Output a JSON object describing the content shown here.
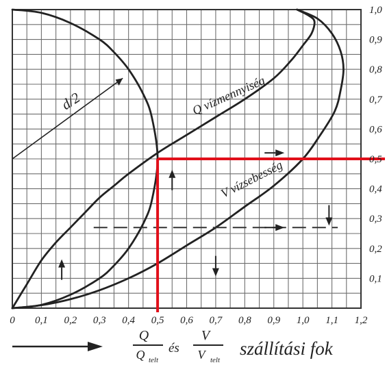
{
  "chart_data": {
    "type": "line",
    "xlim": [
      0,
      1.2
    ],
    "ylim": [
      0,
      1.0
    ],
    "x_ticks": [
      "0",
      "0,1",
      "0,2",
      "0,3",
      "0,4",
      "0,5",
      "0,6",
      "0,7",
      "0,8",
      "0,9",
      "1,0",
      "1,1",
      "1,2"
    ],
    "y_ticks": [
      "0,1",
      "0,2",
      "0,3",
      "0,4",
      "0,5",
      "0,6",
      "0,7",
      "0,8",
      "0,9",
      "1,0"
    ],
    "grid": true,
    "xlabel": {
      "q_num": "Q",
      "q_den": "Q",
      "q_den_sub": "telt",
      "es": "és",
      "v_num": "V",
      "v_den": "V",
      "v_den_sub": "telt",
      "suffix": "szállítási fok"
    },
    "series": [
      {
        "name": "Q vízmennyiség",
        "points": [
          [
            0,
            0
          ],
          [
            0.05,
            0.08
          ],
          [
            0.1,
            0.16
          ],
          [
            0.15,
            0.22
          ],
          [
            0.2,
            0.27
          ],
          [
            0.25,
            0.32
          ],
          [
            0.3,
            0.37
          ],
          [
            0.35,
            0.41
          ],
          [
            0.4,
            0.45
          ],
          [
            0.5,
            0.52
          ],
          [
            0.6,
            0.58
          ],
          [
            0.7,
            0.64
          ],
          [
            0.8,
            0.7
          ],
          [
            0.9,
            0.77
          ],
          [
            0.96,
            0.83
          ],
          [
            1.0,
            0.88
          ],
          [
            1.03,
            0.92
          ],
          [
            1.04,
            0.96
          ],
          [
            1.02,
            0.98
          ],
          [
            0.98,
            1.0
          ]
        ]
      },
      {
        "name": "V vízsebesség",
        "points": [
          [
            0,
            0
          ],
          [
            0.1,
            0.01
          ],
          [
            0.2,
            0.03
          ],
          [
            0.3,
            0.06
          ],
          [
            0.4,
            0.1
          ],
          [
            0.5,
            0.15
          ],
          [
            0.6,
            0.21
          ],
          [
            0.7,
            0.27
          ],
          [
            0.8,
            0.34
          ],
          [
            0.9,
            0.41
          ],
          [
            1.0,
            0.5
          ],
          [
            1.06,
            0.58
          ],
          [
            1.11,
            0.66
          ],
          [
            1.13,
            0.73
          ],
          [
            1.14,
            0.8
          ],
          [
            1.13,
            0.86
          ],
          [
            1.1,
            0.92
          ],
          [
            1.05,
            0.97
          ],
          [
            0.98,
            1.0
          ]
        ]
      },
      {
        "name": "d/2",
        "points": [
          [
            0,
            1.0
          ],
          [
            0.1,
            0.989
          ],
          [
            0.2,
            0.955
          ],
          [
            0.3,
            0.9
          ],
          [
            0.35,
            0.857
          ],
          [
            0.4,
            0.8
          ],
          [
            0.45,
            0.718
          ],
          [
            0.48,
            0.64
          ],
          [
            0.5,
            0.5
          ],
          [
            0.48,
            0.36
          ],
          [
            0.45,
            0.282
          ],
          [
            0.4,
            0.2
          ],
          [
            0.35,
            0.143
          ],
          [
            0.3,
            0.1
          ],
          [
            0.2,
            0.045
          ],
          [
            0.1,
            0.011
          ],
          [
            0,
            0
          ]
        ]
      }
    ],
    "annotations": [
      {
        "text": "Q vízmennyiség",
        "x": 0.75,
        "y": 0.7,
        "angle": -24
      },
      {
        "text": "V vízsebesség",
        "x": 0.83,
        "y": 0.42,
        "angle": -27
      },
      {
        "text": "d/2",
        "x": 0.21,
        "y": 0.68,
        "angle": -33
      }
    ],
    "highlight": {
      "color": "#e10f1a",
      "x": 0.5,
      "y": 0.5
    }
  }
}
